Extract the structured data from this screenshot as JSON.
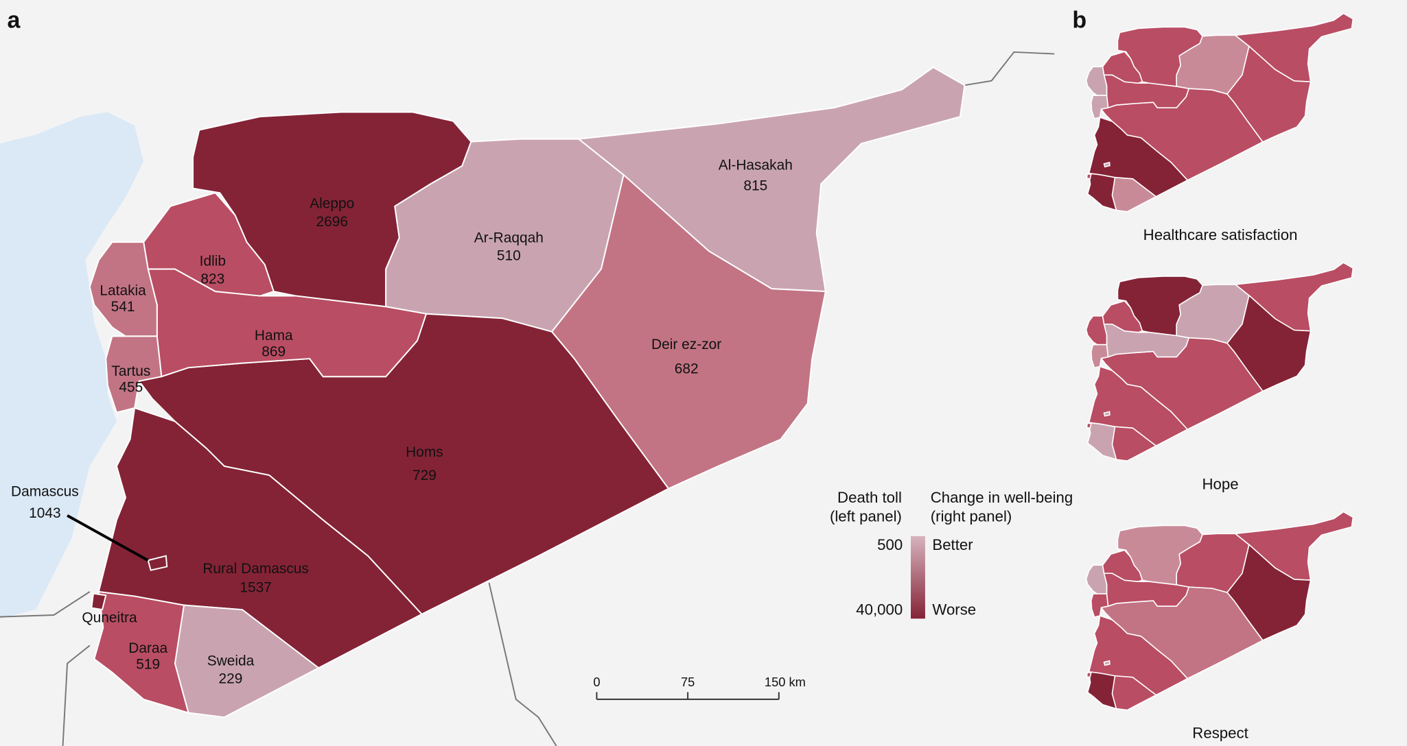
{
  "panel_labels": [
    "a",
    "b"
  ],
  "regions": [
    {
      "name": "Aleppo",
      "value": 2696,
      "color": "#842336"
    },
    {
      "name": "Ar-Raqqah",
      "value": 510,
      "color": "#c9a4b0"
    },
    {
      "name": "Al-Hasakah",
      "value": 815,
      "color": "#c9a4b0"
    },
    {
      "name": "Deir ez-zor",
      "value": 682,
      "color": "#c27484"
    },
    {
      "name": "Homs",
      "value": 729,
      "color": "#842336"
    },
    {
      "name": "Hama",
      "value": 869,
      "color": "#b94d63"
    },
    {
      "name": "Idlib",
      "value": 823,
      "color": "#b94d63"
    },
    {
      "name": "Latakia",
      "value": 541,
      "color": "#c27484"
    },
    {
      "name": "Tartus",
      "value": 455,
      "color": "#c27484"
    },
    {
      "name": "Rural Damascus",
      "value": 1537,
      "color": "#842336"
    },
    {
      "name": "Daraa",
      "value": 519,
      "color": "#b94d63"
    },
    {
      "name": "Sweida",
      "value": 229,
      "color": "#c9a4b0"
    },
    {
      "name": "Damascus",
      "value": 1043,
      "color": "#842336"
    },
    {
      "name": "Quneitra",
      "color": "#842336"
    }
  ],
  "small_maps": [
    {
      "title": "Healthcare satisfaction",
      "colors": [
        "#b94d63",
        "#c98a98",
        "#b94d63",
        "#b94d63",
        "#b94d63",
        "#b94d63",
        "#b94d63",
        "#c9a4b0",
        "#c9a4b0",
        "#842336",
        "#842336",
        "#c98a98",
        "#c9a4b0",
        "#b94d63"
      ]
    },
    {
      "title": "Hope",
      "colors": [
        "#842336",
        "#c9a4b0",
        "#b94d63",
        "#842336",
        "#b94d63",
        "#c9a4b0",
        "#b94d63",
        "#b94d63",
        "#c98a98",
        "#b94d63",
        "#c9a4b0",
        "#b94d63",
        "#c9a4b0",
        "#b94d63"
      ]
    },
    {
      "title": "Respect",
      "colors": [
        "#c98a98",
        "#b94d63",
        "#b94d63",
        "#842336",
        "#c27484",
        "#b94d63",
        "#b94d63",
        "#c9a4b0",
        "#b94d63",
        "#b94d63",
        "#842336",
        "#b94d63",
        "#c9a4b0",
        "#b94d63"
      ]
    }
  ],
  "legend": {
    "left_title": [
      "Death toll",
      "(left panel)"
    ],
    "right_title": [
      "Change in well-being",
      "(right panel)"
    ],
    "scale": [
      500,
      {
        "value": 40000,
        "label": "40,000"
      }
    ],
    "ends": [
      "Better",
      "Worse"
    ],
    "colors": [
      "#d6b3be",
      "#842336"
    ]
  },
  "scale_bar": {
    "ticks": [
      0,
      75,
      {
        "value": 150,
        "label": "150 km"
      }
    ],
    "lim": [
      0,
      150
    ]
  }
}
